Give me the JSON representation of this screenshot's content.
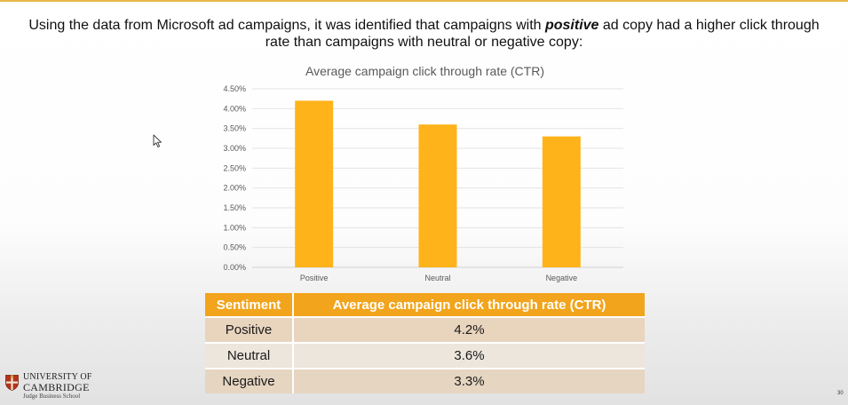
{
  "slide": {
    "headline_before": "Using the data from Microsoft ad campaigns, it was identified that campaigns with ",
    "headline_emphasis": "positive",
    "headline_after": " ad copy had a higher click through rate than campaigns with neutral or negative copy:",
    "page_number": "30",
    "accent_color": "#e8b84a"
  },
  "chart_data": {
    "type": "bar",
    "title": "Average campaign click through rate (CTR)",
    "categories": [
      "Positive",
      "Neutral",
      "Negative"
    ],
    "values": [
      0.042,
      0.036,
      0.033
    ],
    "ylim": [
      0,
      0.045
    ],
    "yticks": [
      "0.00%",
      "0.50%",
      "1.00%",
      "1.50%",
      "2.00%",
      "2.50%",
      "3.00%",
      "3.50%",
      "4.00%",
      "4.50%"
    ],
    "bar_color": "#ffb31a",
    "grid": true,
    "legend": "none"
  },
  "table": {
    "headers": [
      "Sentiment",
      "Average campaign click through rate (CTR)"
    ],
    "rows": [
      [
        "Positive",
        "4.2%"
      ],
      [
        "Neutral",
        "3.6%"
      ],
      [
        "Negative",
        "3.3%"
      ]
    ],
    "header_color": "#f2a41c"
  },
  "logo": {
    "line1": "UNIVERSITY OF",
    "line2": "CAMBRIDGE",
    "line3": "Judge Business School"
  },
  "icons": [
    "mouse-pointer-icon",
    "cambridge-shield-icon"
  ]
}
